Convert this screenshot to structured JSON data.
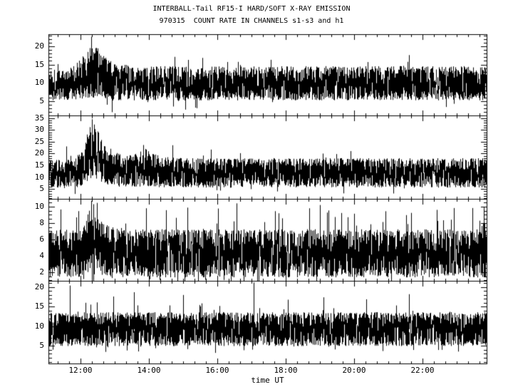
{
  "chart_data": {
    "type": "line",
    "subtype": "multi-panel noisy count-rate time series, vertical-sample style",
    "title": "INTERBALL-Tail RF15-I HARD/SOFT X-RAY EMISSION",
    "subtitle": "970315  COUNT RATE IN CHANNELS s1-s3 and h1",
    "xlabel": "time UT",
    "grid": false,
    "legend": "none",
    "colors": {
      "foreground": "#000000",
      "background": "#ffffff"
    },
    "xlim_hours": [
      11.053,
      23.865
    ],
    "x_major_ticks": [
      {
        "hour": 12,
        "label": "12:00"
      },
      {
        "hour": 14,
        "label": "14:00"
      },
      {
        "hour": 16,
        "label": "16:00"
      },
      {
        "hour": 18,
        "label": "18:00"
      },
      {
        "hour": 20,
        "label": "20:00"
      },
      {
        "hour": 22,
        "label": "22:00"
      }
    ],
    "x_minor_step_hours": 0.33333,
    "seed": 1337,
    "panels": [
      {
        "channel": "s1",
        "ylim": [
          1.1,
          23.3
        ],
        "yticks": [
          5,
          10,
          15,
          20
        ],
        "y_minor_step": 1,
        "envelope": [
          [
            11.05,
            9.5,
            3.6
          ],
          [
            11.75,
            9.8,
            3.8
          ],
          [
            12.0,
            11.0,
            4.6
          ],
          [
            12.2,
            12.8,
            5.8
          ],
          [
            12.38,
            13.3,
            6.3
          ],
          [
            12.55,
            12.2,
            5.4
          ],
          [
            12.8,
            11.0,
            4.6
          ],
          [
            13.1,
            10.2,
            4.2
          ],
          [
            13.6,
            9.8,
            3.9
          ],
          [
            14.5,
            9.9,
            3.9
          ],
          [
            23.87,
            9.9,
            3.9
          ]
        ],
        "spikes": [
          [
            12.9,
            2.0
          ],
          [
            15.05,
            2.7
          ],
          [
            21.6,
            17.6
          ]
        ],
        "noise": {
          "spike_prob_up": 0.02,
          "spike_gain_up": 0.8,
          "spike_prob_down": 0.015,
          "spike_gain_down": 0.6
        }
      },
      {
        "channel": "s2",
        "ylim": [
          0.8,
          36.1
        ],
        "yticks": [
          5,
          10,
          15,
          20,
          25,
          30,
          35
        ],
        "y_minor_step": 1,
        "envelope": [
          [
            11.05,
            11.2,
            5.0
          ],
          [
            11.8,
            11.5,
            5.2
          ],
          [
            12.05,
            14.0,
            6.5
          ],
          [
            12.2,
            19.5,
            9.0
          ],
          [
            12.33,
            22.0,
            10.0
          ],
          [
            12.5,
            19.0,
            8.5
          ],
          [
            12.7,
            15.5,
            7.0
          ],
          [
            13.0,
            13.2,
            6.0
          ],
          [
            13.4,
            12.5,
            5.6
          ],
          [
            13.7,
            13.0,
            6.0
          ],
          [
            13.85,
            15.8,
            7.8
          ],
          [
            14.0,
            13.5,
            6.2
          ],
          [
            14.35,
            12.2,
            5.5
          ],
          [
            15.2,
            11.8,
            5.2
          ],
          [
            23.87,
            11.8,
            5.2
          ]
        ],
        "spikes": [
          [
            11.57,
            23.0
          ],
          [
            12.33,
            34.5
          ],
          [
            14.67,
            23.5
          ]
        ],
        "noise": {
          "spike_prob_up": 0.025,
          "spike_gain_up": 0.7,
          "spike_prob_down": 0.02,
          "spike_gain_down": 0.5
        }
      },
      {
        "channel": "s3",
        "ylim": [
          0.95,
          10.95
        ],
        "yticks": [
          2,
          4,
          6,
          8,
          10
        ],
        "y_minor_step": 0.5,
        "envelope": [
          [
            11.05,
            4.2,
            2.4
          ],
          [
            12.05,
            4.4,
            2.5
          ],
          [
            12.25,
            5.8,
            3.2
          ],
          [
            12.4,
            5.4,
            3.0
          ],
          [
            12.7,
            4.7,
            2.6
          ],
          [
            13.1,
            4.3,
            2.45
          ],
          [
            23.87,
            4.3,
            2.45
          ]
        ],
        "spikes": [
          [
            12.3,
            10.7
          ],
          [
            12.36,
            10.3
          ],
          [
            13.9,
            9.8
          ],
          [
            16.55,
            10.4
          ],
          [
            19.0,
            10.2
          ]
        ],
        "noise": {
          "spike_prob_up": 0.07,
          "spike_gain_up": 1.1,
          "spike_prob_down": 0.03,
          "spike_gain_down": 0.5
        }
      },
      {
        "channel": "h1",
        "ylim": [
          0.55,
          21.6
        ],
        "yticks": [
          5,
          10,
          15,
          20
        ],
        "y_minor_step": 1,
        "envelope": [
          [
            11.05,
            9.3,
            3.6
          ],
          [
            23.87,
            9.3,
            3.6
          ]
        ],
        "spikes": [
          [
            11.68,
            20.4
          ],
          [
            12.95,
            17.6
          ],
          [
            13.55,
            18.7
          ],
          [
            14.98,
            18.0
          ],
          [
            17.05,
            21.2
          ],
          [
            18.05,
            16.8
          ],
          [
            19.1,
            17.4
          ],
          [
            20.35,
            16.9
          ],
          [
            21.6,
            18.2
          ]
        ],
        "noise": {
          "spike_prob_up": 0.035,
          "spike_gain_up": 0.75,
          "spike_prob_down": 0.025,
          "spike_gain_down": 0.5
        }
      }
    ]
  }
}
